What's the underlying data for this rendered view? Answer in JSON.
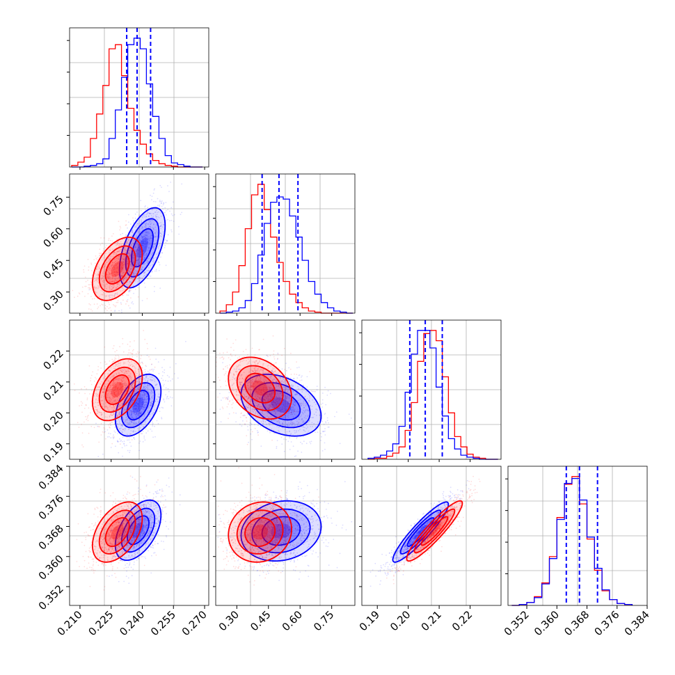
{
  "chart_data": {
    "type": "corner",
    "series": [
      {
        "name": "",
        "color": "#0000ff"
      },
      {
        "name": "",
        "color": "#ff0000"
      }
    ],
    "parameters": [
      {
        "range": [
          0.205,
          0.272
        ],
        "ticks": [
          "0.210",
          "0.225",
          "0.240",
          "0.255",
          "0.270"
        ],
        "quantiles": [
          0.2325,
          0.2375,
          0.244
        ],
        "hist": {
          "edges": [
            0.206,
            0.209,
            0.212,
            0.215,
            0.218,
            0.221,
            0.224,
            0.227,
            0.23,
            0.233,
            0.236,
            0.239,
            0.242,
            0.245,
            0.248,
            0.251,
            0.254,
            0.257,
            0.26,
            0.263,
            0.266,
            0.269
          ],
          "blue": [
            0,
            0,
            1,
            2,
            4,
            10,
            35,
            70,
            110,
            150,
            158,
            145,
            102,
            62,
            35,
            14,
            5,
            3,
            1,
            0,
            0
          ],
          "red": [
            2,
            6,
            12,
            35,
            65,
            100,
            145,
            150,
            112,
            72,
            45,
            28,
            16,
            8,
            4,
            2,
            1,
            0,
            0,
            0,
            0
          ]
        }
      },
      {
        "range": [
          0.2,
          0.86
        ],
        "ticks": [
          "0.30",
          "0.45",
          "0.60",
          "0.75"
        ],
        "quantiles": [
          0.42,
          0.5,
          0.59
        ],
        "hist": {
          "edges": [
            0.22,
            0.25,
            0.28,
            0.31,
            0.34,
            0.37,
            0.4,
            0.43,
            0.46,
            0.49,
            0.52,
            0.55,
            0.58,
            0.61,
            0.64,
            0.67,
            0.7,
            0.73,
            0.76,
            0.79,
            0.82,
            0.85
          ],
          "blue": [
            0,
            1,
            2,
            5,
            12,
            28,
            55,
            85,
            105,
            110,
            108,
            92,
            72,
            50,
            30,
            18,
            10,
            5,
            2,
            1,
            0
          ],
          "red": [
            2,
            8,
            20,
            45,
            80,
            112,
            122,
            98,
            72,
            48,
            30,
            18,
            10,
            5,
            2,
            1,
            0,
            0,
            0,
            0,
            0
          ]
        }
      },
      {
        "range": [
          0.185,
          0.23
        ],
        "ticks": [
          "0.19",
          "0.20",
          "0.21",
          "0.22"
        ],
        "quantiles": [
          0.2005,
          0.2055,
          0.211
        ],
        "hist": {
          "edges": [
            0.187,
            0.189,
            0.191,
            0.193,
            0.195,
            0.197,
            0.199,
            0.201,
            0.203,
            0.205,
            0.207,
            0.209,
            0.211,
            0.213,
            0.215,
            0.217,
            0.219,
            0.221,
            0.223,
            0.225,
            0.227,
            0.229
          ],
          "blue": [
            1,
            2,
            4,
            8,
            15,
            32,
            65,
            102,
            125,
            125,
            108,
            70,
            42,
            20,
            10,
            4,
            2,
            1,
            0,
            0,
            0
          ],
          "red": [
            0,
            1,
            1,
            3,
            6,
            12,
            28,
            55,
            95,
            122,
            125,
            115,
            80,
            45,
            22,
            12,
            5,
            2,
            1,
            0,
            0
          ]
        }
      },
      {
        "range": [
          0.347,
          0.384
        ],
        "ticks": [
          "0.352",
          "0.360",
          "0.368",
          "0.376",
          "0.384"
        ],
        "quantiles": [
          0.3625,
          0.366,
          0.3708
        ],
        "hist": {
          "edges": [
            0.348,
            0.35,
            0.352,
            0.354,
            0.356,
            0.358,
            0.36,
            0.362,
            0.364,
            0.366,
            0.368,
            0.37,
            0.372,
            0.374,
            0.376,
            0.378,
            0.38
          ],
          "blue": [
            0,
            1,
            3,
            8,
            22,
            48,
            88,
            125,
            130,
            108,
            70,
            38,
            16,
            6,
            2,
            1
          ],
          "red": [
            0,
            1,
            3,
            9,
            23,
            50,
            90,
            124,
            132,
            104,
            68,
            36,
            15,
            6,
            2,
            1
          ]
        }
      }
    ],
    "pairs": {
      "1-0": {
        "blue": {
          "mx": 0.24,
          "my": 0.51,
          "sx": 0.0055,
          "sy": 0.095,
          "rho": 0.55
        },
        "red": {
          "mx": 0.228,
          "my": 0.41,
          "sx": 0.006,
          "sy": 0.075,
          "rho": 0.45
        }
      },
      "2-0": {
        "blue": {
          "mx": 0.238,
          "my": 0.2025,
          "sx": 0.0055,
          "sy": 0.005,
          "rho": 0.45
        },
        "red": {
          "mx": 0.228,
          "my": 0.2075,
          "sx": 0.006,
          "sy": 0.005,
          "rho": 0.4
        }
      },
      "2-1": {
        "blue": {
          "mx": 0.51,
          "my": 0.2025,
          "sx": 0.095,
          "sy": 0.005,
          "rho": -0.35
        },
        "red": {
          "mx": 0.41,
          "my": 0.208,
          "sx": 0.075,
          "sy": 0.005,
          "rho": -0.3
        }
      },
      "3-0": {
        "blue": {
          "mx": 0.238,
          "my": 0.367,
          "sx": 0.0055,
          "sy": 0.004,
          "rho": 0.5
        },
        "red": {
          "mx": 0.228,
          "my": 0.3665,
          "sx": 0.006,
          "sy": 0.004,
          "rho": 0.45
        }
      },
      "3-1": {
        "blue": {
          "mx": 0.51,
          "my": 0.3668,
          "sx": 0.095,
          "sy": 0.004,
          "rho": 0.15
        },
        "red": {
          "mx": 0.41,
          "my": 0.3665,
          "sx": 0.075,
          "sy": 0.004,
          "rho": 0.1
        }
      },
      "3-2": {
        "blue": {
          "mx": 0.204,
          "my": 0.3665,
          "sx": 0.0045,
          "sy": 0.004,
          "rho": 0.92
        },
        "red": {
          "mx": 0.2085,
          "my": 0.3668,
          "sx": 0.0045,
          "sy": 0.004,
          "rho": 0.92
        }
      }
    },
    "title": "",
    "xlabel": "",
    "ylabel": "",
    "grid": true
  }
}
